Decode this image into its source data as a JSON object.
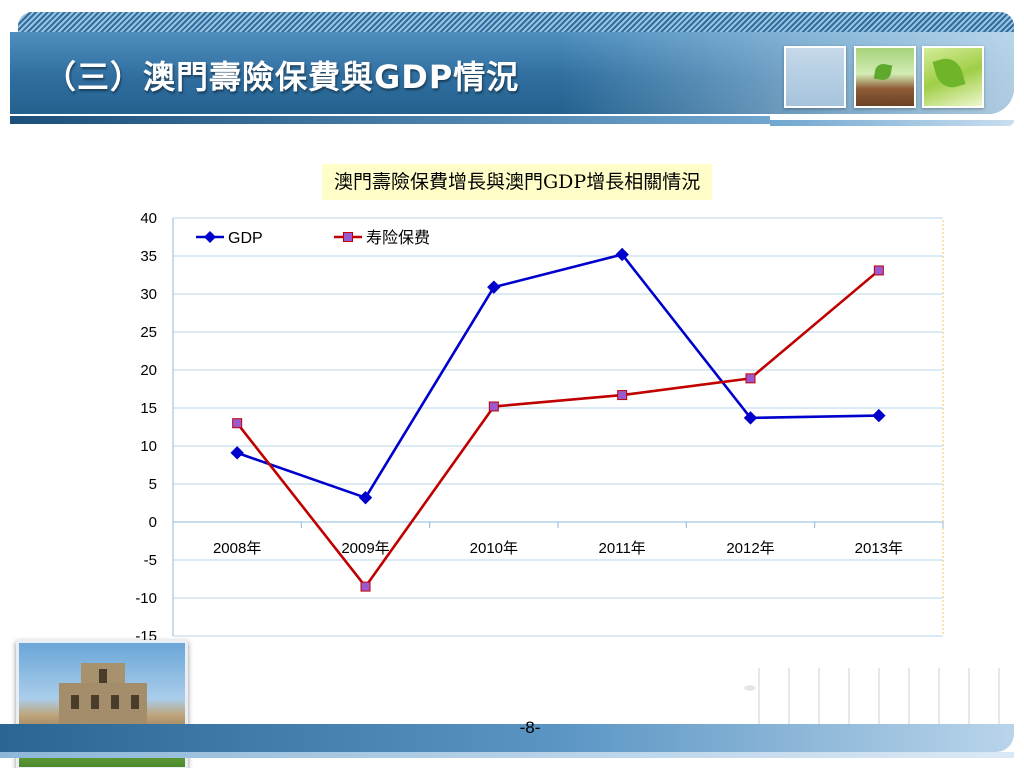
{
  "slide": {
    "title": "（三）澳門壽險保費與GDP情況",
    "page_number": "-8-"
  },
  "chart_data": {
    "type": "line",
    "title": "澳門壽險保費增長與澳門GDP增長相關情況",
    "categories": [
      "2008年",
      "2009年",
      "2010年",
      "2011年",
      "2012年",
      "2013年"
    ],
    "series": [
      {
        "name": "GDP",
        "color": "#0000cc",
        "marker": "diamond",
        "values": [
          9.1,
          3.2,
          30.9,
          35.2,
          13.7,
          14.0
        ]
      },
      {
        "name": "寿险保费",
        "color": "#c00000",
        "marker_fill": "#9b59d0",
        "marker": "square",
        "values": [
          13.0,
          -8.5,
          15.2,
          16.7,
          18.9,
          33.1
        ]
      }
    ],
    "ylim": [
      -15,
      40
    ],
    "yticks": [
      -15,
      -10,
      -5,
      0,
      5,
      10,
      15,
      20,
      25,
      30,
      35,
      40
    ],
    "grid": true,
    "legend_position": "top-left",
    "xlabel": "",
    "ylabel": ""
  }
}
